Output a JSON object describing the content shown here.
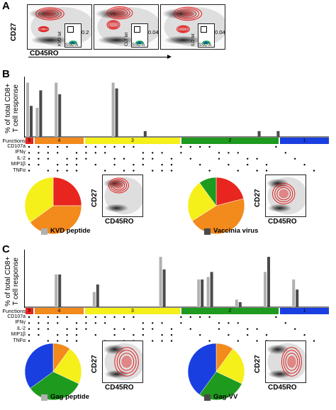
{
  "panels": {
    "a": {
      "label": "A",
      "y_axis": "CD27",
      "x_axis": "CD45RO",
      "insets": [
        {
          "y": "KVD tet",
          "x": "SSC-A",
          "value": "0.2"
        },
        {
          "y": "CLT tet",
          "x": "SSC-A",
          "value": "0.04"
        },
        {
          "y": "ILD tet",
          "x": "SSC-A",
          "value": "0.04"
        }
      ]
    },
    "b": {
      "label": "B",
      "ylabel_line1": "% of total CD8+",
      "ylabel_line2": "T cell response",
      "functions_label": "Functions",
      "groups": [
        "5",
        "4",
        "3",
        "2",
        "1"
      ],
      "group_colors": [
        "#e8251f",
        "#f28a1c",
        "#f5ef1a",
        "#1e9a1e",
        "#1a3fe0"
      ],
      "rows": [
        "CD107a",
        "IFNγ",
        "IL-2",
        "MIP1β",
        "TNFα"
      ],
      "pie1": {
        "legend": "KVD peptide",
        "facs_y": "CD27",
        "facs_x": "CD45RO"
      },
      "pie2": {
        "legend": "Vaccinia virus",
        "facs_y": "CD27",
        "facs_x": "CD45RO"
      },
      "legend_colors": {
        "light": "#b0b0b0",
        "dark": "#4a4a4a"
      }
    },
    "c": {
      "label": "C",
      "ylabel_line1": "% of total CD8+",
      "ylabel_line2": "T cell response",
      "functions_label": "Functions",
      "groups": [
        "5",
        "4",
        "3",
        "2",
        "1"
      ],
      "group_colors": [
        "#e8251f",
        "#f28a1c",
        "#f5ef1a",
        "#1e9a1e",
        "#1a3fe0"
      ],
      "rows": [
        "CD107a",
        "IFNγ",
        "IL-2",
        "MIP1β",
        "TNFα"
      ],
      "pie1": {
        "legend": "Gag peptide",
        "facs_y": "CD27",
        "facs_x": "CD45RO"
      },
      "pie2": {
        "legend": "Gag-VV",
        "facs_y": "CD27",
        "facs_x": "CD45RO"
      },
      "legend_colors": {
        "light": "#b0b0b0",
        "dark": "#4a4a4a"
      }
    }
  },
  "chart_data": [
    {
      "type": "bar",
      "panel": "B",
      "series": [
        {
          "name": "KVD peptide",
          "values": [
            28,
            15,
            0,
            28,
            0,
            0,
            0,
            0,
            0,
            28,
            0,
            0,
            0,
            0,
            0,
            0,
            0,
            0,
            0,
            0,
            0,
            0,
            0,
            0,
            0,
            0,
            0,
            0,
            0,
            0,
            0
          ]
        },
        {
          "name": "Vaccinia virus",
          "values": [
            16,
            24,
            0,
            22,
            0,
            0,
            0,
            0,
            0,
            25,
            0,
            0,
            3,
            0,
            0,
            0,
            0,
            0,
            0,
            0,
            0,
            0,
            0,
            0,
            3,
            0,
            3,
            0,
            0,
            0,
            0
          ]
        }
      ],
      "ylim": [
        0,
        30
      ],
      "pie_fractions": {
        "KVD peptide": {
          "5": 0.25,
          "4": 0.4,
          "3": 0.35,
          "2": 0,
          "1": 0
        },
        "Vaccinia virus": {
          "5": 0.21,
          "4": 0.45,
          "3": 0.24,
          "2": 0.1,
          "1": 0
        }
      }
    },
    {
      "type": "bar",
      "panel": "C",
      "series": [
        {
          "name": "Gag peptide",
          "values": [
            0,
            0,
            0,
            13,
            0,
            0,
            0,
            6,
            0,
            0,
            0,
            0,
            0,
            0,
            20,
            0,
            0,
            0,
            11,
            12,
            0,
            0,
            3,
            0,
            0,
            14,
            0,
            0,
            11,
            0,
            0
          ]
        },
        {
          "name": "Gag-VV",
          "values": [
            0,
            0,
            0,
            13,
            0,
            0,
            0,
            9,
            0,
            0,
            0,
            0,
            0,
            0,
            15,
            0,
            0,
            0,
            11,
            14,
            0,
            0,
            2,
            0,
            0,
            20,
            0,
            0,
            7,
            0,
            0
          ]
        }
      ],
      "ylim": [
        0,
        22
      ],
      "pie_fractions": {
        "Gag peptide": {
          "5": 0,
          "4": 0.1,
          "3": 0.22,
          "2": 0.33,
          "1": 0.35
        },
        "Gag-VV": {
          "5": 0,
          "4": 0.1,
          "3": 0.22,
          "2": 0.28,
          "1": 0.4
        }
      }
    }
  ]
}
